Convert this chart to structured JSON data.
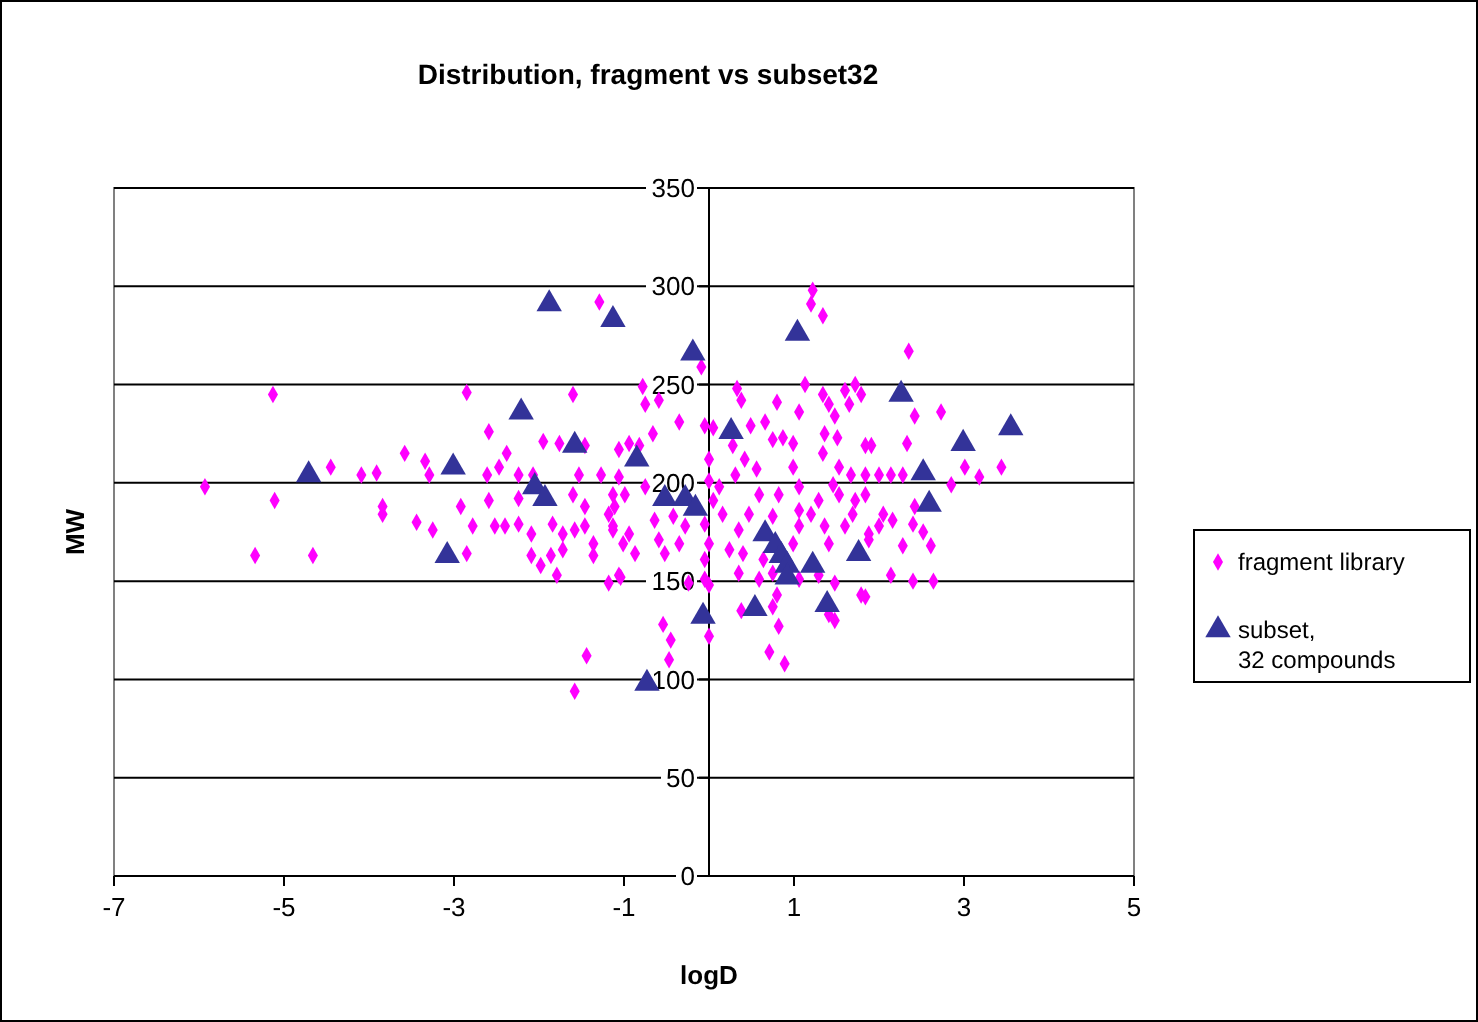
{
  "chart_data": {
    "type": "scatter",
    "title": "Distribution, fragment vs subset32",
    "xlabel": "logD",
    "ylabel": "MW",
    "xlim": [
      -7,
      5
    ],
    "xticks": [
      -7,
      -5,
      -3,
      -1,
      1,
      3,
      5
    ],
    "ylim": [
      0,
      350
    ],
    "yticks": [
      0,
      50,
      100,
      150,
      200,
      250,
      300,
      350
    ],
    "grid": "y",
    "legend": "right",
    "series": [
      {
        "name": "fragment library",
        "color": "#ff00ff",
        "marker": "diamond",
        "x": [
          -1.29,
          -5.13,
          -2.85,
          -1.6,
          -5.93,
          -5.11,
          -5.34,
          -4.66,
          -4.45,
          -4.09,
          -3.91,
          -3.58,
          -3.34,
          -3.29,
          -3.84,
          -3.84,
          -3.44,
          -3.25,
          -2.92,
          -2.85,
          -2.59,
          -2.61,
          -2.38,
          -2.47,
          -2.59,
          -2.78,
          -2.52,
          -2.4,
          -2.24,
          -2.24,
          -2.07,
          -1.95,
          -1.76,
          -2.24,
          -2.09,
          -2.09,
          -1.98,
          -1.79,
          -1.84,
          -1.72,
          -1.72,
          -1.86,
          -1.6,
          -1.53,
          -1.46,
          -1.58,
          -1.46,
          -1.36,
          -1.36,
          -1.13,
          -1.13,
          -1.11,
          -1.18,
          -1.27,
          -1.46,
          -1.06,
          -1.01,
          -1.04,
          -1.44,
          -1.58,
          1.22,
          1.2,
          1.34,
          -0.09,
          2.35,
          0.33,
          1.13,
          1.72,
          1.6,
          1.34,
          1.79,
          1.41,
          1.65,
          0.8,
          1.06,
          1.48,
          0.38,
          -0.35,
          -0.05,
          0.05,
          0.66,
          2.42,
          2.73,
          2.33,
          0.87,
          1.36,
          1.51,
          1.84,
          1.91,
          1.34,
          0.42,
          0.56,
          0.99,
          1.53,
          1.67,
          1.84,
          2.0,
          2.14,
          2.28,
          3.01,
          3.18,
          3.44,
          2.85,
          2.42,
          2.52,
          2.61,
          2.64,
          2.4,
          2.14,
          2.28,
          2.0,
          2.05,
          1.84,
          1.69,
          1.88,
          1.72,
          1.53,
          1.46,
          1.29,
          1.2,
          1.36,
          1.41,
          1.6,
          1.06,
          1.06,
          0.99,
          1.06,
          0.82,
          0.75,
          0.59,
          0.47,
          0.35,
          0.4,
          0.64,
          0.35,
          0.59,
          0.75,
          1.06,
          1.29,
          1.48,
          1.84,
          1.79,
          1.48,
          1.41,
          0.82,
          0.71,
          0.89,
          0.75,
          0.38,
          0.8,
          0.24,
          0.16,
          0.12,
          0.31,
          0.28,
          0.0,
          0.0,
          0.05,
          -0.05,
          0.0,
          -0.05,
          -0.05,
          0.0,
          0.0,
          -0.24,
          -0.28,
          -0.35,
          -0.42,
          -0.52,
          -0.59,
          -0.64,
          -0.75,
          -0.99,
          -1.06,
          -1.18,
          -1.13,
          -0.94,
          -0.87,
          -1.06,
          -0.45,
          -0.54,
          -0.47,
          -0.94,
          -0.82,
          -0.66,
          -0.59,
          -0.75,
          -0.78,
          0.49,
          0.75,
          0.99,
          1.88,
          2.16,
          2.4
        ],
        "values": [
          292,
          245,
          246,
          245,
          198,
          191,
          163,
          163,
          208,
          204,
          205,
          215,
          211,
          204,
          188,
          184,
          180,
          176,
          188,
          164,
          226,
          204,
          215,
          208,
          191,
          178,
          178,
          178,
          179,
          204,
          204,
          221,
          220,
          192,
          174,
          163,
          158,
          153,
          179,
          174,
          166,
          163,
          194,
          204,
          188,
          176,
          178,
          169,
          163,
          194,
          178,
          188,
          149,
          204,
          219,
          217,
          169,
          152,
          112,
          94,
          298,
          291,
          285,
          259,
          267,
          248,
          250,
          250,
          247,
          245,
          245,
          240,
          240,
          241,
          236,
          234,
          242,
          231,
          229,
          228,
          231,
          234,
          236,
          220,
          223,
          225,
          223,
          219,
          219,
          215,
          212,
          207,
          208,
          208,
          204,
          204,
          204,
          204,
          204,
          208,
          203,
          208,
          199,
          188,
          175,
          168,
          150,
          150,
          153,
          168,
          178,
          184,
          194,
          184,
          174,
          191,
          194,
          199,
          191,
          184,
          178,
          169,
          178,
          198,
          178,
          169,
          186,
          194,
          183,
          194,
          184,
          176,
          164,
          161,
          154,
          151,
          154,
          151,
          153,
          149,
          142,
          143,
          130,
          133,
          127,
          114,
          108,
          137,
          135,
          143,
          166,
          184,
          198,
          204,
          219,
          212,
          201,
          191,
          179,
          169,
          161,
          151,
          148,
          122,
          149,
          178,
          169,
          183,
          164,
          171,
          181,
          198,
          194,
          203,
          184,
          176,
          174,
          164,
          153,
          120,
          128,
          110,
          220,
          219,
          225,
          242,
          240,
          249,
          229,
          222,
          220,
          171,
          181,
          179
        ]
      },
      {
        "name": "subset, 32 compounds",
        "color": "#333399",
        "marker": "triangle",
        "x": [
          -1.88,
          -1.13,
          -2.21,
          -1.58,
          -4.71,
          -3.01,
          -2.05,
          -1.93,
          -3.08,
          -0.85,
          -0.19,
          1.04,
          0.26,
          -0.52,
          -0.28,
          -0.16,
          2.26,
          2.99,
          3.55,
          2.52,
          2.59,
          0.66,
          0.78,
          0.85,
          0.92,
          0.92,
          1.22,
          1.76,
          0.54,
          1.39,
          -0.07,
          -0.73
        ],
        "values": [
          291,
          283,
          236,
          219,
          204,
          208,
          198,
          192,
          163,
          212,
          266,
          276,
          226,
          192,
          192,
          187,
          245,
          220,
          228,
          205,
          189,
          174,
          168,
          163,
          158,
          152,
          158,
          164,
          136,
          138,
          132,
          98
        ]
      }
    ]
  }
}
